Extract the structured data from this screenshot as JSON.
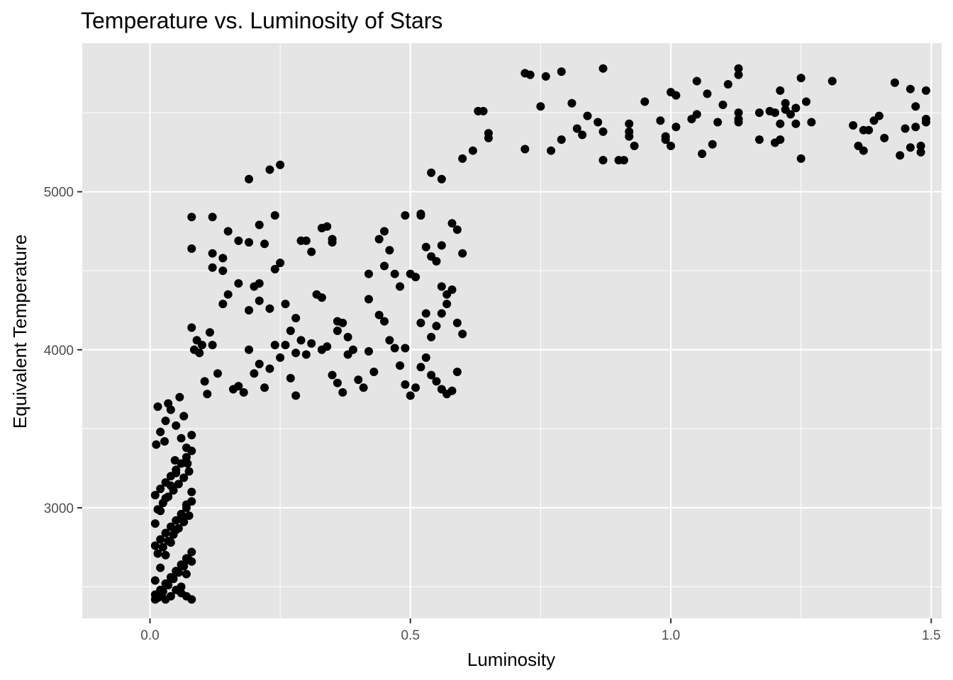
{
  "chart_data": {
    "type": "scatter",
    "title": "Temperature vs. Luminosity of Stars",
    "xlabel": "Luminosity",
    "ylabel": "Equivalent Temperature",
    "xlim": [
      -0.13,
      1.52
    ],
    "ylim": [
      2300,
      5940
    ],
    "x_ticks": [
      0.0,
      0.5,
      1.0,
      1.5
    ],
    "x_tick_labels": [
      "0.0",
      "0.5",
      "1.0",
      "1.5"
    ],
    "y_ticks": [
      3000,
      4000,
      5000
    ],
    "y_tick_labels": [
      "3000",
      "4000",
      "5000"
    ],
    "grid": true,
    "legend": "none",
    "colors": {
      "panel": "#e5e5e5",
      "grid": "#ffffff",
      "point": "#000000"
    },
    "series": [
      {
        "name": "",
        "points": [
          [
            0.01,
            2450
          ],
          [
            0.02,
            2480
          ],
          [
            0.03,
            2520
          ],
          [
            0.04,
            2560
          ],
          [
            0.05,
            2600
          ],
          [
            0.06,
            2640
          ],
          [
            0.07,
            2680
          ],
          [
            0.08,
            2720
          ],
          [
            0.01,
            2760
          ],
          [
            0.02,
            2800
          ],
          [
            0.03,
            2840
          ],
          [
            0.04,
            2880
          ],
          [
            0.05,
            2920
          ],
          [
            0.06,
            2960
          ],
          [
            0.07,
            3000
          ],
          [
            0.08,
            3040
          ],
          [
            0.01,
            3080
          ],
          [
            0.02,
            3120
          ],
          [
            0.03,
            3160
          ],
          [
            0.04,
            3200
          ],
          [
            0.05,
            3240
          ],
          [
            0.06,
            3280
          ],
          [
            0.07,
            3320
          ],
          [
            0.08,
            3360
          ],
          [
            0.015,
            2430
          ],
          [
            0.025,
            2470
          ],
          [
            0.035,
            2510
          ],
          [
            0.045,
            2550
          ],
          [
            0.055,
            2590
          ],
          [
            0.065,
            2630
          ],
          [
            0.075,
            2670
          ],
          [
            0.015,
            2710
          ],
          [
            0.025,
            2750
          ],
          [
            0.035,
            2790
          ],
          [
            0.045,
            2830
          ],
          [
            0.055,
            2870
          ],
          [
            0.065,
            2910
          ],
          [
            0.075,
            2950
          ],
          [
            0.015,
            2990
          ],
          [
            0.025,
            3030
          ],
          [
            0.035,
            3070
          ],
          [
            0.045,
            3110
          ],
          [
            0.055,
            3150
          ],
          [
            0.065,
            3190
          ],
          [
            0.075,
            3230
          ],
          [
            0.01,
            2540
          ],
          [
            0.02,
            2620
          ],
          [
            0.03,
            2700
          ],
          [
            0.04,
            2780
          ],
          [
            0.05,
            2860
          ],
          [
            0.06,
            2940
          ],
          [
            0.07,
            3020
          ],
          [
            0.08,
            3100
          ],
          [
            0.01,
            2900
          ],
          [
            0.02,
            2980
          ],
          [
            0.03,
            3060
          ],
          [
            0.04,
            3140
          ],
          [
            0.05,
            3220
          ],
          [
            0.06,
            2500
          ],
          [
            0.07,
            2580
          ],
          [
            0.08,
            2660
          ],
          [
            0.012,
            3400
          ],
          [
            0.02,
            3480
          ],
          [
            0.03,
            3550
          ],
          [
            0.04,
            3620
          ],
          [
            0.05,
            3520
          ],
          [
            0.06,
            3440
          ],
          [
            0.07,
            3380
          ],
          [
            0.08,
            3460
          ],
          [
            0.035,
            3660
          ],
          [
            0.015,
            3640
          ],
          [
            0.057,
            3700
          ],
          [
            0.065,
            3580
          ],
          [
            0.028,
            3420
          ],
          [
            0.048,
            3300
          ],
          [
            0.072,
            3280
          ],
          [
            0.08,
            2420
          ],
          [
            0.07,
            2440
          ],
          [
            0.06,
            2460
          ],
          [
            0.05,
            2480
          ],
          [
            0.04,
            2440
          ],
          [
            0.03,
            2420
          ],
          [
            0.02,
            2440
          ],
          [
            0.01,
            2420
          ],
          [
            0.08,
            4140
          ],
          [
            0.085,
            4000
          ],
          [
            0.09,
            4060
          ],
          [
            0.095,
            3980
          ],
          [
            0.1,
            4030
          ],
          [
            0.105,
            3800
          ],
          [
            0.11,
            3720
          ],
          [
            0.115,
            4110
          ],
          [
            0.08,
            4640
          ],
          [
            0.08,
            4840
          ],
          [
            0.12,
            4030
          ],
          [
            0.13,
            3850
          ],
          [
            0.14,
            4290
          ],
          [
            0.15,
            4350
          ],
          [
            0.16,
            3750
          ],
          [
            0.17,
            3770
          ],
          [
            0.18,
            3730
          ],
          [
            0.19,
            4000
          ],
          [
            0.2,
            3850
          ],
          [
            0.21,
            3910
          ],
          [
            0.22,
            3760
          ],
          [
            0.23,
            3880
          ],
          [
            0.24,
            4030
          ],
          [
            0.25,
            3950
          ],
          [
            0.12,
            4840
          ],
          [
            0.12,
            4610
          ],
          [
            0.12,
            4520
          ],
          [
            0.14,
            4500
          ],
          [
            0.14,
            4580
          ],
          [
            0.15,
            4750
          ],
          [
            0.17,
            4690
          ],
          [
            0.19,
            5080
          ],
          [
            0.19,
            4680
          ],
          [
            0.21,
            4790
          ],
          [
            0.22,
            4670
          ],
          [
            0.24,
            4850
          ],
          [
            0.24,
            4510
          ],
          [
            0.25,
            4550
          ],
          [
            0.25,
            5170
          ],
          [
            0.23,
            5140
          ],
          [
            0.21,
            4420
          ],
          [
            0.2,
            4400
          ],
          [
            0.17,
            4420
          ],
          [
            0.19,
            4250
          ],
          [
            0.21,
            4310
          ],
          [
            0.23,
            4260
          ],
          [
            0.26,
            4290
          ],
          [
            0.27,
            4120
          ],
          [
            0.26,
            4030
          ],
          [
            0.28,
            4200
          ],
          [
            0.28,
            3980
          ],
          [
            0.29,
            4060
          ],
          [
            0.3,
            3970
          ],
          [
            0.27,
            3820
          ],
          [
            0.28,
            3710
          ],
          [
            0.31,
            4040
          ],
          [
            0.32,
            4350
          ],
          [
            0.33,
            4330
          ],
          [
            0.33,
            4000
          ],
          [
            0.34,
            4020
          ],
          [
            0.35,
            3840
          ],
          [
            0.36,
            3790
          ],
          [
            0.37,
            3730
          ],
          [
            0.38,
            3970
          ],
          [
            0.33,
            4770
          ],
          [
            0.34,
            4780
          ],
          [
            0.35,
            4700
          ],
          [
            0.35,
            4680
          ],
          [
            0.3,
            4690
          ],
          [
            0.29,
            4690
          ],
          [
            0.31,
            4620
          ],
          [
            0.36,
            4120
          ],
          [
            0.36,
            4180
          ],
          [
            0.37,
            4170
          ],
          [
            0.38,
            4080
          ],
          [
            0.39,
            4000
          ],
          [
            0.4,
            3810
          ],
          [
            0.41,
            3760
          ],
          [
            0.42,
            3990
          ],
          [
            0.43,
            3860
          ],
          [
            0.42,
            4320
          ],
          [
            0.42,
            4480
          ],
          [
            0.44,
            4700
          ],
          [
            0.45,
            4750
          ],
          [
            0.46,
            4630
          ],
          [
            0.45,
            4530
          ],
          [
            0.47,
            4480
          ],
          [
            0.48,
            4400
          ],
          [
            0.49,
            4850
          ],
          [
            0.52,
            4860
          ],
          [
            0.52,
            4850
          ],
          [
            0.53,
            4650
          ],
          [
            0.54,
            4590
          ],
          [
            0.55,
            4560
          ],
          [
            0.56,
            4400
          ],
          [
            0.57,
            4290
          ],
          [
            0.44,
            4220
          ],
          [
            0.45,
            4180
          ],
          [
            0.46,
            4060
          ],
          [
            0.47,
            4010
          ],
          [
            0.48,
            3900
          ],
          [
            0.49,
            3780
          ],
          [
            0.5,
            3710
          ],
          [
            0.51,
            3760
          ],
          [
            0.52,
            3890
          ],
          [
            0.53,
            3950
          ],
          [
            0.54,
            3840
          ],
          [
            0.55,
            3800
          ],
          [
            0.56,
            3750
          ],
          [
            0.57,
            3720
          ],
          [
            0.58,
            3740
          ],
          [
            0.59,
            3860
          ],
          [
            0.54,
            4080
          ],
          [
            0.55,
            4150
          ],
          [
            0.56,
            4230
          ],
          [
            0.57,
            4350
          ],
          [
            0.58,
            4380
          ],
          [
            0.59,
            4170
          ],
          [
            0.6,
            4100
          ],
          [
            0.6,
            4610
          ],
          [
            0.58,
            4800
          ],
          [
            0.59,
            4760
          ],
          [
            0.56,
            4660
          ],
          [
            0.5,
            4480
          ],
          [
            0.51,
            4460
          ],
          [
            0.52,
            4170
          ],
          [
            0.53,
            4230
          ],
          [
            0.49,
            4010
          ],
          [
            0.54,
            5120
          ],
          [
            0.56,
            5080
          ],
          [
            0.6,
            5210
          ],
          [
            0.62,
            5260
          ],
          [
            0.63,
            5510
          ],
          [
            0.64,
            5510
          ],
          [
            0.65,
            5370
          ],
          [
            0.65,
            5340
          ],
          [
            0.72,
            5750
          ],
          [
            0.73,
            5740
          ],
          [
            0.75,
            5540
          ],
          [
            0.76,
            5730
          ],
          [
            0.79,
            5760
          ],
          [
            0.87,
            5780
          ],
          [
            0.77,
            5260
          ],
          [
            0.79,
            5330
          ],
          [
            0.72,
            5270
          ],
          [
            0.81,
            5560
          ],
          [
            0.82,
            5400
          ],
          [
            0.83,
            5360
          ],
          [
            0.84,
            5480
          ],
          [
            0.86,
            5440
          ],
          [
            0.87,
            5380
          ],
          [
            0.87,
            5200
          ],
          [
            0.9,
            5200
          ],
          [
            0.91,
            5200
          ],
          [
            0.92,
            5350
          ],
          [
            0.92,
            5380
          ],
          [
            0.92,
            5430
          ],
          [
            0.93,
            5290
          ],
          [
            0.95,
            5570
          ],
          [
            0.98,
            5450
          ],
          [
            0.99,
            5330
          ],
          [
            0.99,
            5350
          ],
          [
            1.0,
            5290
          ],
          [
            1.0,
            5630
          ],
          [
            1.01,
            5610
          ],
          [
            1.01,
            5410
          ],
          [
            1.04,
            5460
          ],
          [
            1.05,
            5490
          ],
          [
            1.05,
            5700
          ],
          [
            1.06,
            5240
          ],
          [
            1.07,
            5620
          ],
          [
            1.08,
            5300
          ],
          [
            1.09,
            5440
          ],
          [
            1.1,
            5550
          ],
          [
            1.11,
            5680
          ],
          [
            1.13,
            5500
          ],
          [
            1.13,
            5460
          ],
          [
            1.13,
            5440
          ],
          [
            1.13,
            5740
          ],
          [
            1.13,
            5780
          ],
          [
            1.17,
            5330
          ],
          [
            1.17,
            5500
          ],
          [
            1.19,
            5510
          ],
          [
            1.2,
            5310
          ],
          [
            1.2,
            5500
          ],
          [
            1.21,
            5430
          ],
          [
            1.21,
            5640
          ],
          [
            1.21,
            5330
          ],
          [
            1.22,
            5560
          ],
          [
            1.22,
            5520
          ],
          [
            1.23,
            5490
          ],
          [
            1.24,
            5530
          ],
          [
            1.25,
            5720
          ],
          [
            1.25,
            5210
          ],
          [
            1.24,
            5430
          ],
          [
            1.26,
            5570
          ],
          [
            1.27,
            5440
          ],
          [
            1.31,
            5700
          ],
          [
            1.35,
            5420
          ],
          [
            1.36,
            5290
          ],
          [
            1.37,
            5260
          ],
          [
            1.37,
            5390
          ],
          [
            1.38,
            5390
          ],
          [
            1.39,
            5450
          ],
          [
            1.4,
            5480
          ],
          [
            1.41,
            5340
          ],
          [
            1.43,
            5690
          ],
          [
            1.44,
            5230
          ],
          [
            1.45,
            5400
          ],
          [
            1.46,
            5280
          ],
          [
            1.46,
            5650
          ],
          [
            1.47,
            5540
          ],
          [
            1.47,
            5410
          ],
          [
            1.48,
            5290
          ],
          [
            1.48,
            5250
          ],
          [
            1.49,
            5640
          ],
          [
            1.49,
            5460
          ],
          [
            1.49,
            5440
          ]
        ]
      }
    ]
  }
}
